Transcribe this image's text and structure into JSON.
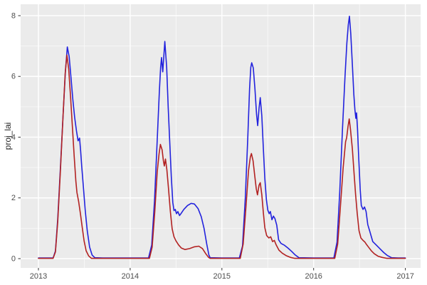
{
  "chart_data": {
    "type": "line",
    "title": "",
    "xlabel": "",
    "ylabel": "proj_lai",
    "x_ticks": [
      2013,
      2014,
      2015,
      2016,
      2017
    ],
    "x_tick_labels": [
      "2013",
      "2014",
      "2015",
      "2016",
      "2017"
    ],
    "x_minor_ticks": [
      2013.5,
      2014.5,
      2015.5,
      2016.5
    ],
    "y_ticks": [
      0,
      2,
      4,
      6,
      8
    ],
    "y_tick_labels": [
      "0",
      "2",
      "4",
      "6",
      "8"
    ],
    "y_minor_ticks": [
      1,
      3,
      5,
      7
    ],
    "xlim": [
      2012.806,
      2017.166
    ],
    "ylim": [
      -0.305,
      8.375
    ],
    "grid": true,
    "legend": "none",
    "colors": {
      "panel_bg": "#ebebeb",
      "grid": "#ffffff",
      "tick_label": "#4d4d4d",
      "tick_mark": "#333333",
      "axis_title": "#262626"
    },
    "series": [
      {
        "name": "blue-line",
        "color": "#2222dd",
        "x": [
          2013.0,
          2013.16,
          2013.185,
          2013.21,
          2013.24,
          2013.27,
          2013.295,
          2013.315,
          2013.335,
          2013.355,
          2013.375,
          2013.395,
          2013.415,
          2013.432,
          2013.448,
          2013.46,
          2013.472,
          2013.49,
          2013.51,
          2013.532,
          2013.558,
          2013.585,
          2013.615,
          2013.7,
          2014.2,
          2014.235,
          2014.265,
          2014.295,
          2014.318,
          2014.332,
          2014.342,
          2014.355,
          2014.378,
          2014.398,
          2014.415,
          2014.43,
          2014.448,
          2014.465,
          2014.478,
          2014.492,
          2014.505,
          2014.52,
          2014.538,
          2014.558,
          2014.585,
          2014.625,
          2014.665,
          2014.7,
          2014.74,
          2014.775,
          2014.805,
          2014.835,
          2014.858,
          2014.872,
          2015.0,
          2015.19,
          2015.225,
          2015.255,
          2015.282,
          2015.302,
          2015.315,
          2015.325,
          2015.342,
          2015.36,
          2015.378,
          2015.39,
          2015.405,
          2015.418,
          2015.435,
          2015.452,
          2015.468,
          2015.485,
          2015.5,
          2015.515,
          2015.528,
          2015.545,
          2015.562,
          2015.578,
          2015.598,
          2015.618,
          2015.645,
          2015.682,
          2015.72,
          2015.76,
          2015.8,
          2015.84,
          2016.0,
          2016.22,
          2016.255,
          2016.285,
          2016.315,
          2016.342,
          2016.362,
          2016.378,
          2016.39,
          2016.405,
          2016.422,
          2016.438,
          2016.45,
          2016.46,
          2016.468,
          2016.478,
          2016.492,
          2016.508,
          2016.52,
          2016.538,
          2016.555,
          2016.572,
          2016.59,
          2016.612,
          2016.645,
          2016.685,
          2016.725,
          2016.765,
          2016.805,
          2016.85,
          2016.92,
          2017.0
        ],
        "y": [
          0.02,
          0.02,
          0.25,
          1.3,
          3.0,
          4.8,
          6.2,
          6.97,
          6.65,
          5.95,
          5.25,
          4.65,
          4.2,
          3.88,
          3.97,
          3.55,
          3.05,
          2.35,
          1.6,
          0.92,
          0.38,
          0.12,
          0.03,
          0.02,
          0.02,
          0.45,
          1.9,
          3.9,
          5.5,
          6.3,
          6.62,
          6.15,
          7.15,
          6.3,
          4.95,
          3.95,
          2.7,
          1.85,
          1.58,
          1.62,
          1.48,
          1.55,
          1.42,
          1.5,
          1.62,
          1.75,
          1.82,
          1.8,
          1.65,
          1.38,
          1.0,
          0.48,
          0.12,
          0.03,
          0.02,
          0.02,
          0.42,
          2.0,
          4.0,
          5.6,
          6.3,
          6.45,
          6.28,
          5.6,
          4.75,
          4.38,
          4.95,
          5.3,
          4.7,
          3.6,
          2.65,
          1.95,
          1.6,
          1.48,
          1.55,
          1.28,
          1.4,
          1.32,
          1.1,
          0.62,
          0.5,
          0.44,
          0.35,
          0.24,
          0.12,
          0.03,
          0.02,
          0.02,
          0.55,
          2.2,
          4.3,
          6.0,
          7.1,
          7.7,
          7.98,
          7.4,
          6.4,
          5.4,
          4.9,
          4.62,
          4.8,
          4.3,
          3.3,
          2.25,
          1.75,
          1.62,
          1.7,
          1.55,
          1.12,
          0.9,
          0.56,
          0.44,
          0.32,
          0.2,
          0.1,
          0.03,
          0.02,
          0.02
        ]
      },
      {
        "name": "red-line",
        "color": "#b22222",
        "x": [
          2013.0,
          2013.16,
          2013.185,
          2013.21,
          2013.24,
          2013.268,
          2013.292,
          2013.31,
          2013.33,
          2013.35,
          2013.37,
          2013.39,
          2013.408,
          2013.42,
          2013.438,
          2013.458,
          2013.478,
          2013.498,
          2013.52,
          2013.548,
          2013.578,
          2013.65,
          2014.21,
          2014.24,
          2014.268,
          2014.295,
          2014.315,
          2014.33,
          2014.348,
          2014.362,
          2014.372,
          2014.385,
          2014.4,
          2014.418,
          2014.438,
          2014.458,
          2014.478,
          2014.5,
          2014.528,
          2014.558,
          2014.598,
          2014.648,
          2014.7,
          2014.748,
          2014.788,
          2014.825,
          2014.855,
          2014.872,
          2015.0,
          2015.2,
          2015.232,
          2015.262,
          2015.29,
          2015.31,
          2015.322,
          2015.34,
          2015.358,
          2015.375,
          2015.388,
          2015.405,
          2015.418,
          2015.435,
          2015.452,
          2015.468,
          2015.488,
          2015.512,
          2015.532,
          2015.552,
          2015.572,
          2015.592,
          2015.622,
          2015.658,
          2015.7,
          2015.748,
          2015.795,
          2016.0,
          2016.23,
          2016.262,
          2016.292,
          2016.322,
          2016.348,
          2016.36,
          2016.375,
          2016.388,
          2016.402,
          2016.422,
          2016.442,
          2016.458,
          2016.475,
          2016.495,
          2016.515,
          2016.538,
          2016.558,
          2016.578,
          2016.598,
          2016.628,
          2016.662,
          2016.702,
          2016.748,
          2016.8,
          2016.9,
          2017.0
        ],
        "y": [
          0.01,
          0.01,
          0.22,
          1.2,
          2.9,
          4.7,
          6.1,
          6.7,
          6.25,
          5.35,
          4.35,
          3.35,
          2.55,
          2.18,
          1.88,
          1.48,
          1.02,
          0.58,
          0.26,
          0.09,
          0.01,
          0.01,
          0.01,
          0.38,
          1.55,
          2.85,
          3.45,
          3.76,
          3.58,
          3.22,
          3.05,
          3.28,
          2.92,
          2.3,
          1.55,
          0.98,
          0.72,
          0.58,
          0.45,
          0.35,
          0.3,
          0.33,
          0.39,
          0.41,
          0.33,
          0.16,
          0.04,
          0.01,
          0.01,
          0.01,
          0.48,
          1.7,
          2.9,
          3.35,
          3.46,
          3.22,
          2.72,
          2.3,
          2.1,
          2.42,
          2.5,
          2.1,
          1.5,
          1.02,
          0.76,
          0.68,
          0.72,
          0.56,
          0.6,
          0.45,
          0.28,
          0.18,
          0.1,
          0.04,
          0.01,
          0.01,
          0.01,
          0.48,
          1.7,
          3.0,
          3.85,
          3.98,
          4.35,
          4.6,
          4.25,
          3.62,
          2.75,
          2.1,
          1.5,
          0.92,
          0.68,
          0.6,
          0.55,
          0.46,
          0.38,
          0.26,
          0.16,
          0.08,
          0.04,
          0.01,
          0.01,
          0.01
        ]
      }
    ]
  }
}
